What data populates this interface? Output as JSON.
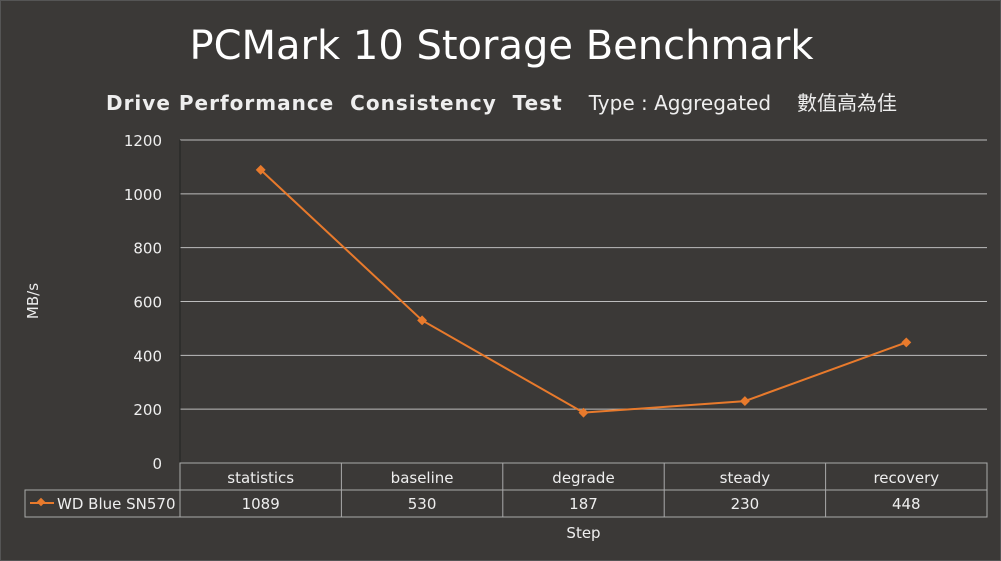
{
  "chart_data": {
    "type": "line",
    "title": "PCMark 10 Storage Benchmark",
    "subtitle": "Drive Performance  Consistency  Test",
    "type_label": "Type : Aggregated",
    "note": "數值高為佳",
    "xlabel": "Step",
    "ylabel": "MB/s",
    "ylim": [
      0,
      1200
    ],
    "yticks": [
      0,
      200,
      400,
      600,
      800,
      1000,
      1200
    ],
    "categories": [
      "statistics",
      "baseline",
      "degrade",
      "steady",
      "recovery"
    ],
    "series": [
      {
        "name": "WD Blue SN570",
        "values": [
          1089,
          530,
          187,
          230,
          448
        ],
        "color": "#e87a2c"
      }
    ],
    "grid": true,
    "legend": "data-table"
  }
}
